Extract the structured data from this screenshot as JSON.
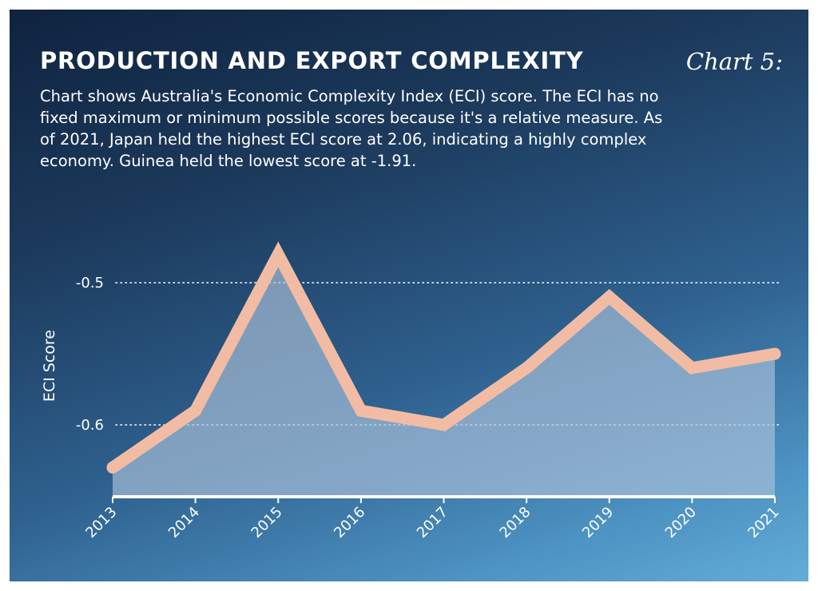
{
  "header": {
    "title": "PRODUCTION AND EXPORT COMPLEXITY",
    "chart_number": "Chart 5:"
  },
  "description": "Chart shows Australia's Economic Complexity Index (ECI) score. The ECI has no fixed maximum or minimum possible scores because it's a relative measure. As of 2021, Japan held the highest ECI score at 2.06, indicating a highly complex economy. Guinea held the lowest score at -1.91.",
  "colors": {
    "line": "#f2bca4",
    "area": "#a9bfd8",
    "gridline": "#ffffff",
    "text": "#ffffff"
  },
  "chart_data": {
    "type": "area",
    "title": "PRODUCTION AND EXPORT COMPLEXITY",
    "xlabel": "",
    "ylabel": "ECI Score",
    "x": [
      "2013",
      "2014",
      "2015",
      "2016",
      "2017",
      "2018",
      "2019",
      "2020",
      "2021"
    ],
    "series": [
      {
        "values": [
          -0.63,
          -0.59,
          -0.48,
          -0.59,
          -0.6,
          -0.56,
          -0.51,
          -0.56,
          -0.55
        ]
      }
    ],
    "yticks": [
      -0.5,
      -0.6
    ],
    "ytick_labels": [
      "-0.5",
      "-0.6"
    ],
    "ylim": [
      -0.65,
      -0.47
    ],
    "grid": "horizontal dotted",
    "legend": "none"
  }
}
